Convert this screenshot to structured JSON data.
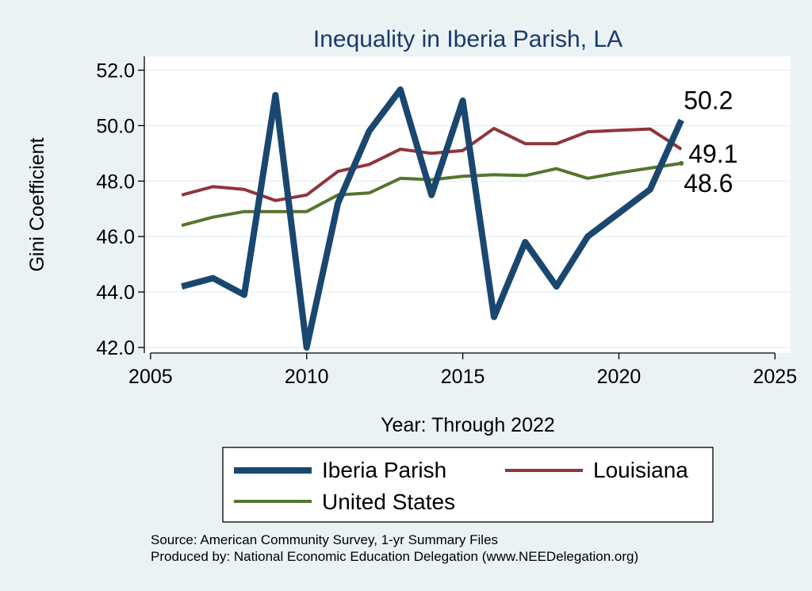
{
  "chart_data": {
    "type": "line",
    "title": "Inequality in Iberia Parish, LA",
    "xlabel": "Year: Through 2022",
    "ylabel": "Gini Coefficient",
    "xlim": [
      2004.8,
      2025.5
    ],
    "ylim": [
      41.8,
      52.5
    ],
    "xticks": [
      2005,
      2010,
      2015,
      2020,
      2025
    ],
    "yticks": [
      42.0,
      44.0,
      46.0,
      48.0,
      50.0,
      52.0
    ],
    "grid": true,
    "series": [
      {
        "name": "Iberia Parish",
        "color": "#1a476f",
        "end_label": "50.2",
        "x": [
          2006,
          2007,
          2008,
          2009,
          2010,
          2011,
          2012,
          2013,
          2014,
          2015,
          2016,
          2017,
          2018,
          2019,
          2020,
          2021,
          2022
        ],
        "y": [
          44.2,
          44.5,
          43.9,
          51.1,
          42.0,
          47.2,
          49.8,
          51.3,
          47.5,
          50.9,
          43.1,
          45.8,
          44.2,
          46.0,
          46.85,
          47.7,
          50.2
        ]
      },
      {
        "name": "Louisiana",
        "color": "#90353b",
        "end_label": "49.1",
        "x": [
          2006,
          2007,
          2008,
          2009,
          2010,
          2011,
          2012,
          2013,
          2014,
          2015,
          2016,
          2017,
          2018,
          2019,
          2020,
          2021,
          2022
        ],
        "y": [
          47.5,
          47.8,
          47.7,
          47.3,
          47.5,
          48.35,
          48.6,
          49.15,
          49.0,
          49.1,
          49.9,
          49.35,
          49.35,
          49.78,
          49.83,
          49.88,
          49.15
        ]
      },
      {
        "name": "United States",
        "color": "#55752f",
        "end_label": "48.6",
        "x": [
          2006,
          2007,
          2008,
          2009,
          2010,
          2011,
          2012,
          2013,
          2014,
          2015,
          2016,
          2017,
          2018,
          2019,
          2020,
          2021,
          2022
        ],
        "y": [
          46.4,
          46.7,
          46.9,
          46.9,
          46.9,
          47.5,
          47.57,
          48.1,
          48.05,
          48.17,
          48.23,
          48.2,
          48.45,
          48.1,
          48.3,
          48.47,
          48.64
        ]
      }
    ],
    "legend": {
      "position": "bottom",
      "columns": 2
    }
  },
  "notes": {
    "source": "Source: American Community Survey, 1-yr Summary Files",
    "producer": "Produced by: National Economic Education Delegation (www.NEEDelegation.org)"
  }
}
